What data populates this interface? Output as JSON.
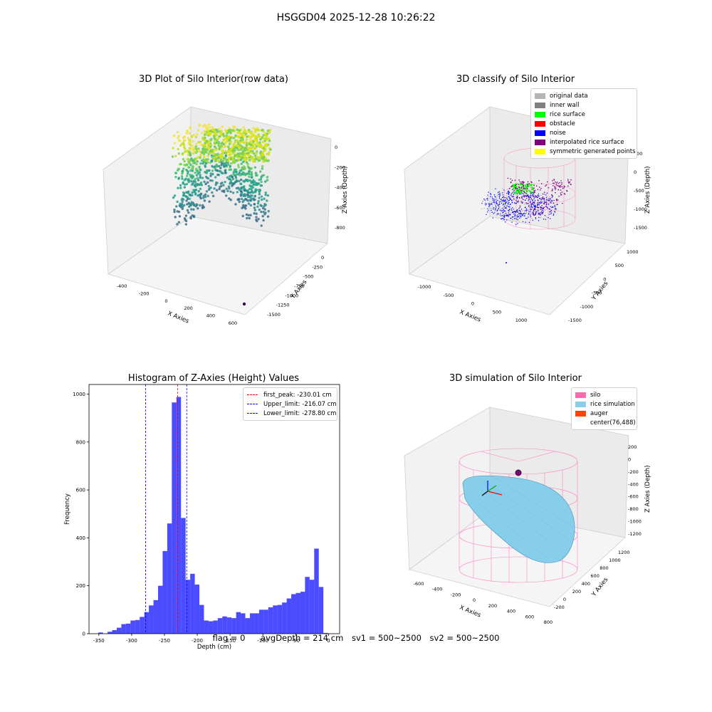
{
  "figure": {
    "title": "HSGGD04 2025-12-28 10:26:22",
    "status": {
      "flag": "flag = 0",
      "avg_depth": "avgDepth = 214 cm",
      "sv1": "sv1 = 500~2500",
      "sv2": "sv2 = 500~2500"
    }
  },
  "panels": {
    "raw": {
      "title": "3D Plot of Silo Interior(row data)",
      "xlabel": "X Axies",
      "ylabel": "Y Axies",
      "zlabel": "Z Axies (Depth)",
      "xticks": [
        "-400",
        "-200",
        "0",
        "200",
        "400",
        "600"
      ],
      "yticks": [
        "0",
        "-250",
        "-500",
        "-750",
        "-1000",
        "-1250",
        "-1500"
      ],
      "zticks": [
        "0",
        "-200",
        "-400",
        "-600",
        "-800"
      ]
    },
    "classify": {
      "title": "3D classify of Silo Interior",
      "xlabel": "X Axies",
      "ylabel": "Y Axies",
      "zlabel": "Z Axies (Depth)",
      "xticks": [
        "-1000",
        "-500",
        "0",
        "500",
        "1000"
      ],
      "yticks": [
        "1000",
        "500",
        "0",
        "-500",
        "-1000",
        "-1500"
      ],
      "zticks": [
        "500",
        "0",
        "-500",
        "-1000",
        "-1500"
      ],
      "legend": [
        {
          "label": "original data",
          "color": "#b4b4b4"
        },
        {
          "label": "inner wall",
          "color": "#808080"
        },
        {
          "label": "rice surface",
          "color": "#00ff00"
        },
        {
          "label": "obstacle",
          "color": "#ff0000"
        },
        {
          "label": "noise",
          "color": "#0000ff"
        },
        {
          "label": "interpolated rice surface",
          "color": "#800080"
        },
        {
          "label": "symmetric generated points",
          "color": "#ffff00"
        }
      ]
    },
    "simulation": {
      "title": "3D simulation of Silo Interior",
      "xlabel": "X Axies",
      "ylabel": "Y Axies",
      "zlabel": "Z Axies (Depth)",
      "xticks": [
        "-600",
        "-400",
        "-200",
        "0",
        "200",
        "400",
        "600",
        "800"
      ],
      "yticks": [
        "-200",
        "0",
        "200",
        "400",
        "600",
        "800",
        "1000",
        "1200"
      ],
      "zticks": [
        "200",
        "0",
        "-200",
        "-400",
        "-600",
        "-800",
        "-1000",
        "-1200"
      ],
      "legend": [
        {
          "label": "silo",
          "color": "#ff69b4"
        },
        {
          "label": "rice simulation",
          "color": "#87ceeb"
        },
        {
          "label": "auger",
          "color": "#ff4500"
        },
        {
          "label": "center(76,488)",
          "color": ""
        }
      ]
    }
  },
  "chart_data": {
    "type": "bar",
    "title": "Histogram of Z-Axies (Height) Values",
    "xlabel": "Depth (cm)",
    "ylabel": "Frequency",
    "xlim": [
      -365,
      17
    ],
    "ylim": [
      0,
      1040
    ],
    "xticks": [
      -350,
      -300,
      -250,
      -200,
      -150,
      -100,
      -50,
      0
    ],
    "yticks": [
      0,
      200,
      400,
      600,
      800,
      1000
    ],
    "bin_start": -350.75,
    "bin_width": 7.0,
    "values": [
      5,
      0,
      8,
      15,
      25,
      40,
      42,
      55,
      57,
      70,
      90,
      118,
      140,
      200,
      345,
      460,
      965,
      988,
      483,
      225,
      250,
      205,
      120,
      55,
      52,
      55,
      65,
      72,
      68,
      65,
      90,
      85,
      65,
      85,
      85,
      100,
      100,
      110,
      118,
      120,
      130,
      147,
      165,
      170,
      175,
      237,
      225,
      355,
      195,
      3
    ],
    "color": "#0000ff",
    "lines": [
      {
        "label": "first_peak: -230.01 cm",
        "x": -230.01,
        "color": "#ff0000"
      },
      {
        "label": "Upper_limit: -216.07 cm",
        "x": -216.07,
        "color": "#0000ff"
      },
      {
        "label": "Lower_limit: -278.80 cm",
        "x": -278.8,
        "color": "#0000ff"
      }
    ],
    "legend_position": "upper-right"
  }
}
